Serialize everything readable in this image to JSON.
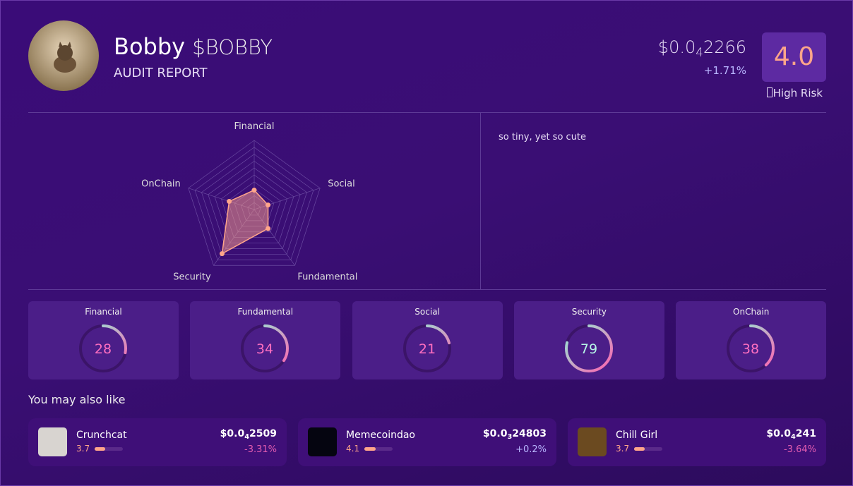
{
  "header": {
    "name": "Bobby",
    "ticker": "$BOBBY",
    "subtitle": "AUDIT REPORT",
    "price": {
      "prefix": "$0.0",
      "zeros": "4",
      "digits": "2266"
    },
    "change": "+1.71%",
    "score": "4.0",
    "risk": "High Risk"
  },
  "radar": {
    "axes": [
      "Financial",
      "Social",
      "Fundamental",
      "Security",
      "OnChain"
    ],
    "rlim": [
      0,
      100
    ]
  },
  "description": "so tiny, yet so cute",
  "scores": [
    {
      "label": "Financial",
      "value": 28
    },
    {
      "label": "Fundamental",
      "value": 34
    },
    {
      "label": "Social",
      "value": 21
    },
    {
      "label": "Security",
      "value": 79
    },
    {
      "label": "OnChain",
      "value": 38
    }
  ],
  "recommendations": {
    "title": "You may also like",
    "rating_lim": [
      0,
      5
    ],
    "items": [
      {
        "name": "Crunchcat",
        "rating": 3.7,
        "price": {
          "prefix": "$0.0",
          "zeros": "4",
          "digits": "2509"
        },
        "change": "-3.31%"
      },
      {
        "name": "Memecoindao",
        "rating": 4.1,
        "price": {
          "prefix": "$0.0",
          "zeros": "3",
          "digits": "24803"
        },
        "change": "+0.2%"
      },
      {
        "name": "Chill Girl",
        "rating": 3.7,
        "price": {
          "prefix": "$0.0",
          "zeros": "4",
          "digits": "241"
        },
        "change": "-3.64%"
      }
    ]
  }
}
